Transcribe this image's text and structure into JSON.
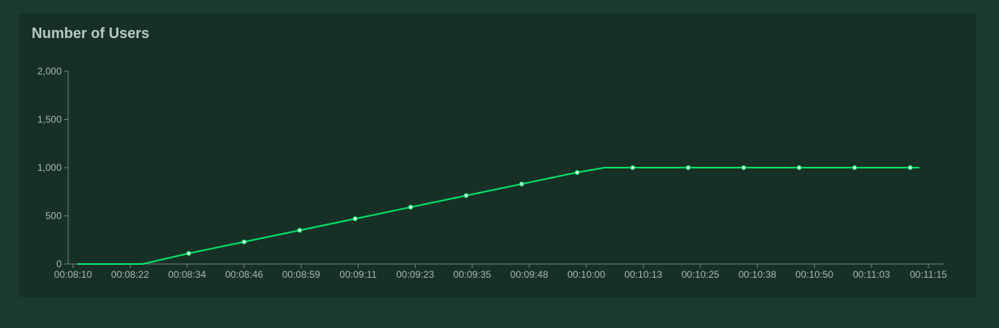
{
  "panel": {
    "title": "Number of Users"
  },
  "colors": {
    "page_background": "#1a3a2e",
    "panel_background": "#173026",
    "line": "#00e065",
    "axis": "#6e7f77",
    "text": "#a9b6b0"
  },
  "chart_data": {
    "type": "line",
    "title": "Number of Users",
    "xlabel": "",
    "ylabel": "",
    "ylim": [
      0,
      2000
    ],
    "yticks": [
      0,
      500,
      1000,
      1500,
      2000
    ],
    "ytick_labels": [
      "0",
      "500",
      "1,000",
      "1,500",
      "2,000"
    ],
    "xtick_labels": [
      "00:08:10",
      "00:08:22",
      "00:08:34",
      "00:08:46",
      "00:08:59",
      "00:09:11",
      "00:09:23",
      "00:09:35",
      "00:09:48",
      "00:10:00",
      "00:10:13",
      "00:10:25",
      "00:10:38",
      "00:10:50",
      "00:11:03",
      "00:11:15"
    ],
    "grid": false,
    "series": [
      {
        "name": "",
        "x": [
          "00:08:11",
          "00:08:25",
          "00:08:35",
          "00:08:47",
          "00:08:59",
          "00:09:11",
          "00:09:23",
          "00:09:35",
          "00:09:47",
          "00:09:59",
          "00:10:05",
          "00:10:11",
          "00:10:23",
          "00:10:35",
          "00:10:47",
          "00:10:59",
          "00:11:11",
          "00:11:13"
        ],
        "y": [
          0,
          0,
          110,
          230,
          350,
          470,
          590,
          710,
          830,
          950,
          1000,
          1000,
          1000,
          1000,
          1000,
          1000,
          1000,
          1000
        ],
        "marker": [
          false,
          false,
          true,
          true,
          true,
          true,
          true,
          true,
          true,
          true,
          false,
          true,
          true,
          true,
          true,
          true,
          true,
          false
        ]
      }
    ]
  }
}
